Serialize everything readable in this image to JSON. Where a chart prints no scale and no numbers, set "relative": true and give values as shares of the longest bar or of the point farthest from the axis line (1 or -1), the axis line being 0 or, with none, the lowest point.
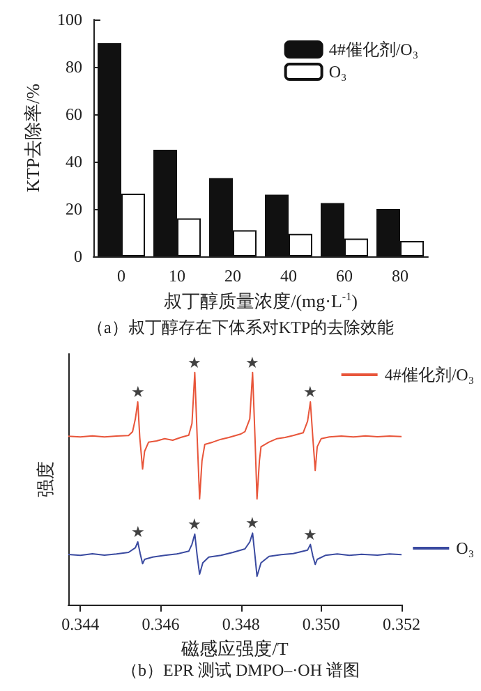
{
  "chart_data": [
    {
      "type": "bar",
      "title": "（a）叔丁醇存在下体系对KTP的去除效能",
      "xlabel": "叔丁醇质量浓度/(mg·L$^{-1}$)",
      "ylabel": "KTP去除率/%",
      "categories": [
        "0",
        "10",
        "20",
        "40",
        "60",
        "80"
      ],
      "series": [
        {
          "name": "4#催化剂/O₃",
          "color": "#111111",
          "values": [
            90,
            45,
            33,
            26,
            22.5,
            20
          ]
        },
        {
          "name": "O₃",
          "color": "#ffffff",
          "values": [
            26.5,
            16,
            11,
            9.5,
            7.5,
            6.5
          ]
        }
      ],
      "ylim": [
        0,
        100
      ],
      "yticks": [
        0,
        20,
        40,
        60,
        80,
        100
      ],
      "grid": false,
      "legend": "top right"
    },
    {
      "type": "line",
      "title": "（b）EPR 测试 DMPO–·OH 谱图",
      "xlabel": "磁感应强度/T",
      "ylabel": "强度",
      "relative": true,
      "tick_labels": "x",
      "grid": false,
      "legend": "right",
      "marker": "none",
      "line_style": "solid",
      "xlim": [
        0.3437,
        0.352
      ],
      "xticks": [
        0.344,
        0.346,
        0.348,
        {
          "value": 0.35,
          "label": "0.350"
        },
        0.352
      ],
      "series": [
        {
          "name": "4#催化剂/O₃",
          "color": "#e8553a",
          "x": [
            0.3437,
            0.344,
            0.3443,
            0.3446,
            0.3449,
            0.3452,
            0.3453,
            0.34537,
            0.34543,
            0.34548,
            0.34555,
            0.3456,
            0.3457,
            0.3459,
            0.3461,
            0.3463,
            0.3465,
            0.3467,
            0.34678,
            0.34685,
            0.34691,
            0.34697,
            0.34703,
            0.3471,
            0.3473,
            0.3475,
            0.3477,
            0.348,
            0.3481,
            0.34822,
            0.34829,
            0.34835,
            0.3484,
            0.34846,
            0.3485,
            0.3487,
            0.3489,
            0.3491,
            0.3493,
            0.34955,
            0.34966,
            0.34973,
            0.34979,
            0.34985,
            0.3499,
            0.35,
            0.3502,
            0.3505,
            0.3508,
            0.3511,
            0.3514,
            0.3517,
            0.352
          ],
          "values": [
            0.725,
            0.722,
            0.727,
            0.722,
            0.726,
            0.728,
            0.745,
            0.8,
            0.873,
            0.72,
            0.584,
            0.66,
            0.7,
            0.705,
            0.715,
            0.708,
            0.72,
            0.73,
            0.78,
            1.0,
            0.72,
            0.455,
            0.62,
            0.69,
            0.7,
            0.712,
            0.72,
            0.735,
            0.745,
            0.8,
            1.0,
            0.72,
            0.455,
            0.62,
            0.68,
            0.7,
            0.715,
            0.72,
            0.728,
            0.74,
            0.79,
            0.873,
            0.72,
            0.578,
            0.68,
            0.715,
            0.722,
            0.726,
            0.722,
            0.727,
            0.723,
            0.726,
            0.724
          ]
        },
        {
          "name": "O₃",
          "color": "#3a4aa0",
          "x": [
            0.3437,
            0.344,
            0.3443,
            0.3446,
            0.3449,
            0.3452,
            0.34537,
            0.34543,
            0.34549,
            0.34555,
            0.3456,
            0.3458,
            0.3461,
            0.3464,
            0.3467,
            0.34678,
            0.34685,
            0.34691,
            0.34697,
            0.34705,
            0.3472,
            0.3475,
            0.3478,
            0.3481,
            0.34822,
            0.34829,
            0.34835,
            0.3484,
            0.3485,
            0.3487,
            0.349,
            0.3493,
            0.34966,
            0.34973,
            0.34979,
            0.34985,
            0.3499,
            0.3501,
            0.3504,
            0.3507,
            0.351,
            0.3514,
            0.3517,
            0.352
          ],
          "values": [
            0.216,
            0.212,
            0.219,
            0.213,
            0.218,
            0.225,
            0.245,
            0.27,
            0.22,
            0.176,
            0.195,
            0.205,
            0.212,
            0.218,
            0.23,
            0.26,
            0.304,
            0.21,
            0.131,
            0.18,
            0.205,
            0.212,
            0.225,
            0.24,
            0.27,
            0.308,
            0.21,
            0.122,
            0.18,
            0.208,
            0.215,
            0.22,
            0.235,
            0.259,
            0.21,
            0.173,
            0.195,
            0.212,
            0.218,
            0.212,
            0.217,
            0.213,
            0.218,
            0.215
          ]
        }
      ],
      "annotations": [
        {
          "text": "★",
          "x": 0.34543,
          "y": 0.873
        },
        {
          "text": "★",
          "x": 0.34685,
          "y": 1.0
        },
        {
          "text": "★",
          "x": 0.34829,
          "y": 1.0
        },
        {
          "text": "★",
          "x": 0.34973,
          "y": 0.873
        },
        {
          "text": "★",
          "x": 0.34543,
          "y": 0.27
        },
        {
          "text": "★",
          "x": 0.34685,
          "y": 0.304
        },
        {
          "text": "★",
          "x": 0.34829,
          "y": 0.308
        },
        {
          "text": "★",
          "x": 0.34973,
          "y": 0.259
        }
      ]
    }
  ]
}
